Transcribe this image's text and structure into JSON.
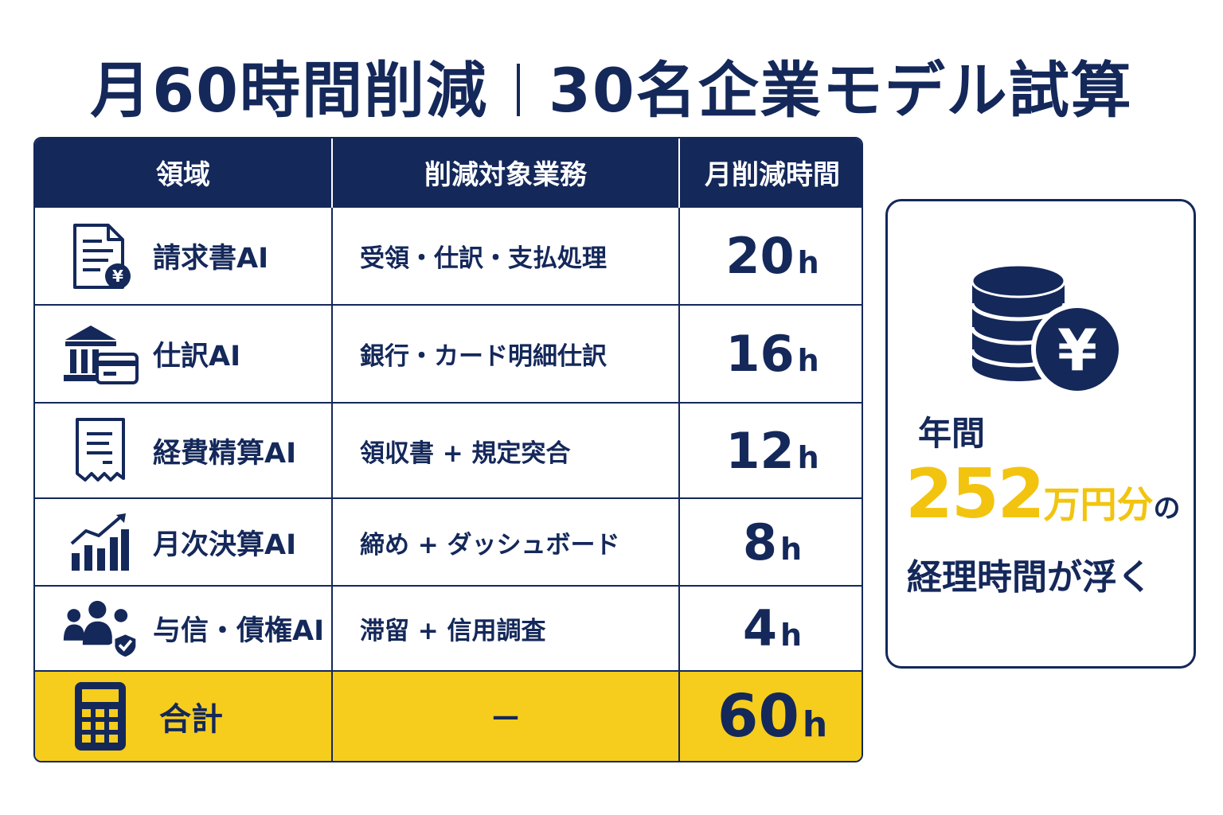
{
  "title": {
    "left": "月60時間削減",
    "right": "30名企業モデル試算"
  },
  "table": {
    "headers": {
      "area": "領域",
      "task": "削減対象業務",
      "hours": "月削減時間"
    },
    "rows": [
      {
        "icon": "invoice-yen-icon",
        "area": "請求書AI",
        "task": "受領・仕訳・支払処理",
        "hours": "20",
        "unit": "h"
      },
      {
        "icon": "bank-card-icon",
        "area": "仕訳AI",
        "task": "銀行・カード明細仕訳",
        "hours": "16",
        "unit": "h"
      },
      {
        "icon": "receipt-icon",
        "area": "経費精算AI",
        "task": "領収書 + 規定突合",
        "hours": "12",
        "unit": "h"
      },
      {
        "icon": "growth-chart-icon",
        "area": "月次決算AI",
        "task": "締め + ダッシュボード",
        "hours": "8",
        "unit": "h"
      },
      {
        "icon": "people-shield-icon",
        "area": "与信・債権AI",
        "task": "滞留 + 信用調査",
        "hours": "4",
        "unit": "h"
      }
    ],
    "total": {
      "icon": "calculator-icon",
      "area": "合計",
      "task": "—",
      "hours": "60",
      "unit": "h"
    }
  },
  "side": {
    "icon": "coins-yen-icon",
    "line1": "年間",
    "amount": "252",
    "amount_unit": "万円分",
    "particle": "の",
    "line3": "経理時間が浮く"
  },
  "colors": {
    "navy": "#14285a",
    "yellow": "#f6cd1c",
    "amount_yellow": "#f2c40f"
  }
}
